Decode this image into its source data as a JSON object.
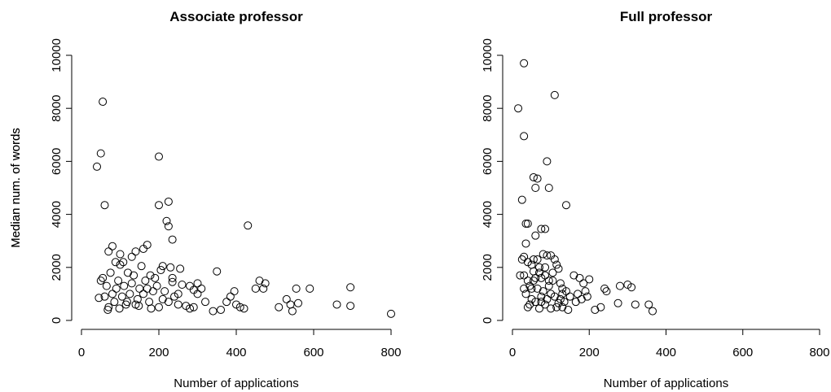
{
  "chart_data": [
    {
      "type": "scatter",
      "title": "Associate professor",
      "x_label": "Number of applications",
      "y_label": "Median num. of words",
      "color": "#000000",
      "xlim": [
        0,
        800
      ],
      "xticks": [
        0,
        200,
        400,
        600,
        800
      ],
      "ylim": [
        0,
        10000
      ],
      "yticks": [
        0,
        2000,
        4000,
        6000,
        8000,
        10000
      ],
      "x": [
        55,
        50,
        40,
        60,
        200,
        200,
        225,
        220,
        225,
        235,
        430,
        350,
        80,
        170,
        140,
        160,
        70,
        100,
        130,
        255,
        210,
        230,
        460,
        475,
        590,
        695,
        800,
        660,
        695,
        540,
        555,
        530,
        510,
        545,
        560,
        400,
        395,
        385,
        375,
        360,
        340,
        310,
        300,
        290,
        280,
        270,
        260,
        250,
        240,
        235,
        235,
        225,
        215,
        210,
        200,
        195,
        190,
        185,
        180,
        175,
        170,
        165,
        160,
        155,
        150,
        145,
        140,
        135,
        130,
        125,
        120,
        115,
        110,
        105,
        100,
        95,
        90,
        85,
        80,
        75,
        70,
        65,
        60,
        55,
        50,
        45,
        68,
        88,
        98,
        108,
        118,
        148,
        178,
        205,
        250,
        320,
        290,
        450,
        470,
        410,
        420,
        300,
        280
      ],
      "y": [
        8250,
        6300,
        5800,
        4350,
        6180,
        4350,
        4480,
        3750,
        3550,
        3050,
        3580,
        1850,
        2800,
        2850,
        2600,
        2700,
        2600,
        2500,
        2400,
        1950,
        2050,
        2000,
        1500,
        1400,
        1200,
        1250,
        250,
        600,
        550,
        600,
        1200,
        800,
        500,
        350,
        650,
        600,
        1100,
        900,
        700,
        400,
        350,
        1200,
        1400,
        1150,
        450,
        550,
        1350,
        1000,
        900,
        1600,
        1450,
        700,
        1100,
        800,
        500,
        1300,
        1600,
        1100,
        450,
        700,
        1200,
        1500,
        1000,
        2050,
        1200,
        800,
        600,
        1700,
        1400,
        1000,
        1800,
        600,
        1300,
        900,
        2100,
        1500,
        1200,
        700,
        1000,
        1800,
        500,
        1300,
        900,
        1600,
        1500,
        850,
        400,
        2200,
        450,
        2200,
        700,
        550,
        1700,
        1900,
        600,
        700,
        500,
        1200,
        1200,
        500,
        450,
        1000,
        1300
      ]
    },
    {
      "type": "scatter",
      "title": "Full professor",
      "x_label": "Number of applications",
      "y_label": "Median num. of words",
      "color": "#000000",
      "xlim": [
        0,
        800
      ],
      "xticks": [
        0,
        200,
        400,
        600,
        800
      ],
      "ylim": [
        0,
        10000
      ],
      "yticks": [
        0,
        2000,
        4000,
        6000,
        8000,
        10000
      ],
      "x": [
        30,
        15,
        30,
        110,
        90,
        95,
        55,
        65,
        60,
        25,
        140,
        35,
        40,
        75,
        85,
        60,
        35,
        30,
        25,
        40,
        50,
        55,
        65,
        70,
        80,
        90,
        100,
        110,
        115,
        120,
        75,
        85,
        95,
        105,
        125,
        130,
        140,
        150,
        160,
        165,
        175,
        185,
        190,
        195,
        200,
        215,
        230,
        240,
        245,
        275,
        280,
        300,
        310,
        320,
        355,
        365,
        50,
        45,
        40,
        35,
        45,
        55,
        60,
        65,
        70,
        75,
        80,
        85,
        90,
        100,
        110,
        120,
        130,
        135,
        145,
        60,
        70,
        50,
        40,
        30,
        100,
        115,
        75,
        95,
        55,
        85,
        105,
        125,
        130,
        30,
        20,
        170,
        180
      ],
      "y": [
        9700,
        8000,
        6950,
        8500,
        6000,
        5000,
        5400,
        5350,
        5000,
        4550,
        4350,
        3650,
        3650,
        3450,
        3450,
        3200,
        2900,
        2400,
        2300,
        2200,
        2100,
        1850,
        2300,
        2000,
        2500,
        2450,
        2450,
        2300,
        2100,
        1950,
        1600,
        1700,
        1500,
        1500,
        1400,
        1200,
        1100,
        900,
        1700,
        700,
        1600,
        1400,
        1100,
        900,
        1550,
        400,
        500,
        1200,
        1100,
        650,
        1300,
        1350,
        1250,
        600,
        600,
        350,
        800,
        600,
        500,
        1000,
        1300,
        1500,
        700,
        1200,
        450,
        900,
        1100,
        600,
        800,
        450,
        900,
        650,
        500,
        700,
        400,
        1600,
        1800,
        1200,
        1500,
        1700,
        1000,
        500,
        700,
        1300,
        2300,
        2000,
        1800,
        800,
        1000,
        1200,
        1700,
        1000,
        800
      ]
    }
  ]
}
